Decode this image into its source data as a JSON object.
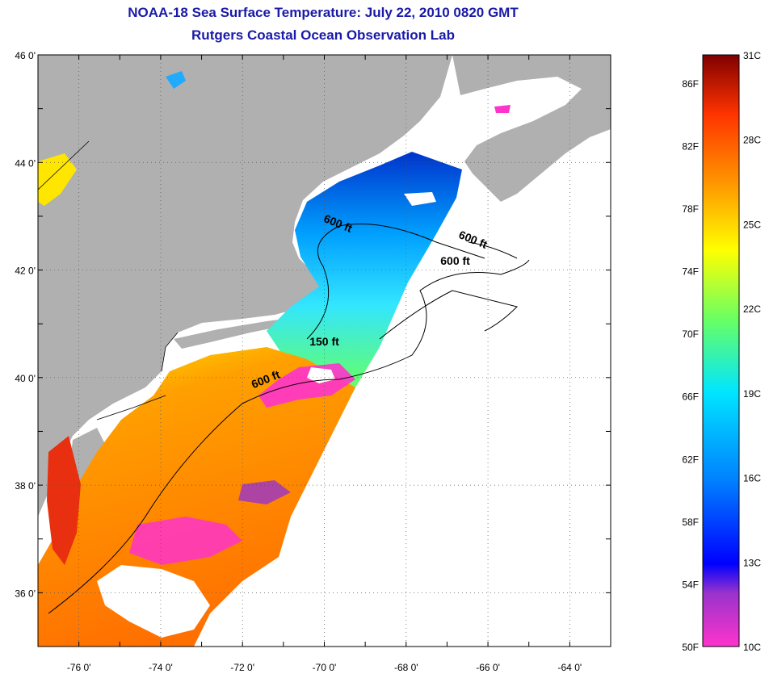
{
  "title": "NOAA-18 Sea Surface Temperature:  July 22, 2010 0820 GMT",
  "subtitle": "Rutgers Coastal Ocean Observation Lab",
  "colors": {
    "title": "#1a1aa8",
    "land": "#b0b0b0",
    "no_data": "#ffffff",
    "frame": "#000000"
  },
  "map": {
    "lon_range": [
      -77,
      -63
    ],
    "lat_range": [
      35,
      46
    ],
    "lon_ticks": [
      "-76 0'",
      "-74 0'",
      "-72 0'",
      "-70 0'",
      "-68 0'",
      "-66 0'",
      "-64 0'"
    ],
    "lat_ticks": [
      "46 0'",
      "44 0'",
      "42 0'",
      "40 0'",
      "38 0'",
      "36 0'"
    ],
    "grid": "dotted",
    "contour_labels": [
      {
        "text": "600 ft",
        "lon": -69.7,
        "lat": 42.8
      },
      {
        "text": "600 ft",
        "lon": -66.4,
        "lat": 42.5
      },
      {
        "text": "600 ft",
        "lon": -66.8,
        "lat": 42.1
      },
      {
        "text": "150 ft",
        "lon": -70.0,
        "lat": 40.6
      },
      {
        "text": "600 ft",
        "lon": -71.4,
        "lat": 39.9
      }
    ]
  },
  "colorbar": {
    "fahrenheit_labels": [
      "86F",
      "82F",
      "78F",
      "74F",
      "70F",
      "66F",
      "62F",
      "58F",
      "54F",
      "50F"
    ],
    "celsius_labels": [
      "31C",
      "28C",
      "25C",
      "22C",
      "19C",
      "16C",
      "13C",
      "10C"
    ],
    "stops": [
      "#ff33cc",
      "#9933cc",
      "#0000ff",
      "#0080ff",
      "#00e5ff",
      "#66ff66",
      "#ffff00",
      "#ff9900",
      "#ff3300",
      "#800000"
    ]
  }
}
